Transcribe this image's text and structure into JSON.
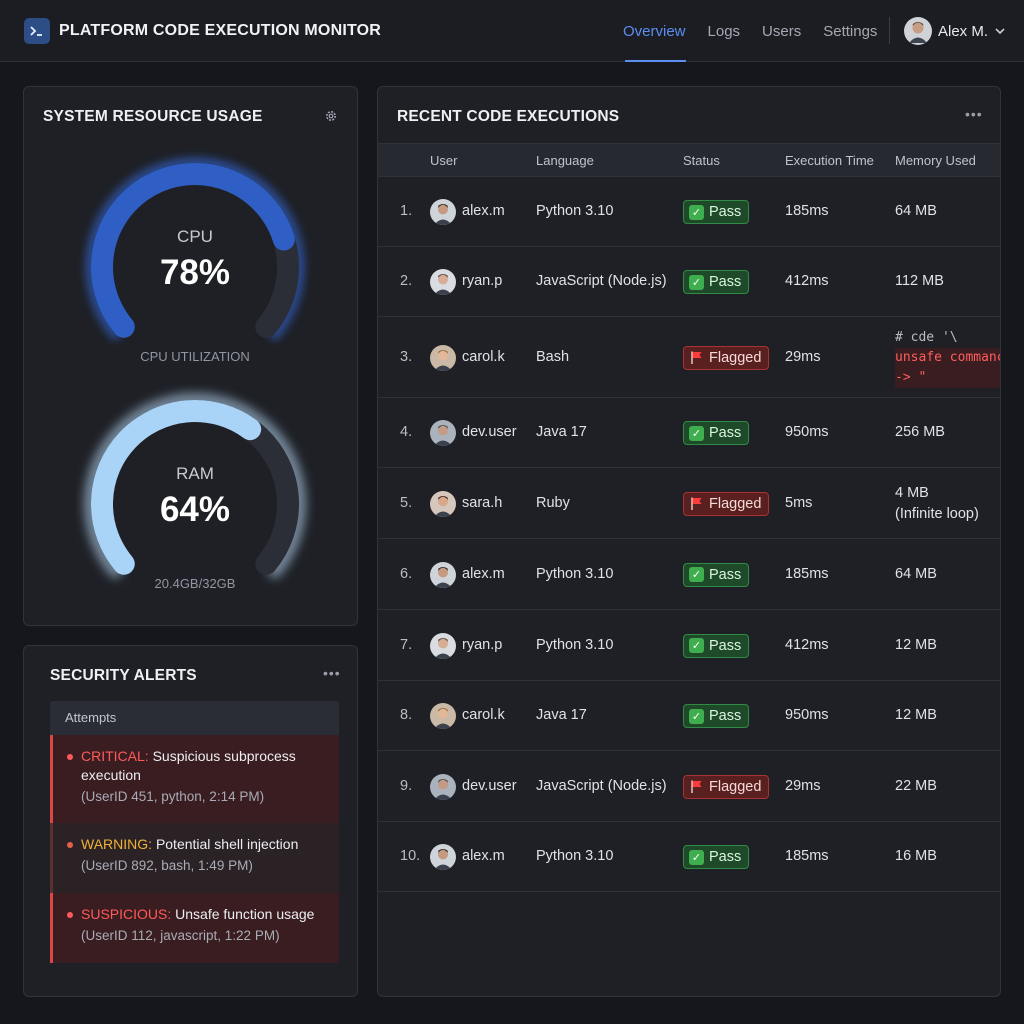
{
  "header": {
    "title": "PLATFORM CODE EXECUTION MONITOR",
    "nav": [
      {
        "label": "Overview",
        "active": true
      },
      {
        "label": "Logs",
        "active": false
      },
      {
        "label": "Users",
        "active": false
      },
      {
        "label": "Settings",
        "active": false
      }
    ],
    "user": {
      "name": "Alex M."
    }
  },
  "resources": {
    "title": "SYSTEM RESOURCE USAGE",
    "cpu": {
      "label": "CPU",
      "value": "78%",
      "percent": 78,
      "caption": "CPU UTILIZATION",
      "color": "#2f5ec4"
    },
    "ram": {
      "label": "RAM",
      "value": "64%",
      "percent": 64,
      "caption": "20.4GB/32GB",
      "color": "#a9d3f7"
    }
  },
  "alerts": {
    "title": "SECURITY ALERTS",
    "header": "Attempts",
    "items": [
      {
        "severity": "CRITICAL:",
        "message": "Suspicious subprocess execution",
        "detail": "(UserID 451, python, 2:14 PM)",
        "sev_color": "#ff5a5a"
      },
      {
        "severity": "WARNING:",
        "message": "Potential shell injection",
        "detail": "(UserID 892, bash, 1:49 PM)",
        "sev_color": "#f0b13a"
      },
      {
        "severity": "SUSPICIOUS:",
        "message": "Unsafe function usage",
        "detail": "(UserID 112, javascript, 1:22 PM)",
        "sev_color": "#ff5a5a"
      }
    ]
  },
  "executions": {
    "title": "RECENT CODE EXECUTIONS",
    "columns": {
      "user": "User",
      "language": "Language",
      "status": "Status",
      "time": "Execution Time",
      "memory": "Memory Used"
    },
    "rows": [
      {
        "num": "1.",
        "user": "alex.m",
        "language": "Python 3.10",
        "status": "Pass",
        "time": "185ms",
        "memory": "64 MB"
      },
      {
        "num": "2.",
        "user": "ryan.p",
        "language": "JavaScript (Node.js)",
        "status": "Pass",
        "time": "412ms",
        "memory": "112 MB"
      },
      {
        "num": "3.",
        "user": "carol.k",
        "language": "Bash",
        "status": "Flagged",
        "time": "29ms",
        "memory_code": [
          "# cde '\\",
          "unsafe commanc",
          "-> \""
        ]
      },
      {
        "num": "4.",
        "user": "dev.user",
        "language": "Java 17",
        "status": "Pass",
        "time": "950ms",
        "memory": "256 MB"
      },
      {
        "num": "5.",
        "user": "sara.h",
        "language": "Ruby",
        "status": "Flagged",
        "time": "5ms",
        "memory": "4 MB",
        "memory_note": "(Infinite loop)"
      },
      {
        "num": "6.",
        "user": "alex.m",
        "language": "Python 3.10",
        "status": "Pass",
        "time": "185ms",
        "memory": "64 MB"
      },
      {
        "num": "7.",
        "user": "ryan.p",
        "language": "Python 3.10",
        "status": "Pass",
        "time": "412ms",
        "memory": "12 MB"
      },
      {
        "num": "8.",
        "user": "carol.k",
        "language": "Java 17",
        "status": "Pass",
        "time": "950ms",
        "memory": "12 MB"
      },
      {
        "num": "9.",
        "user": "dev.user",
        "language": "JavaScript (Node.js)",
        "status": "Flagged",
        "time": "29ms",
        "memory": "22 MB"
      },
      {
        "num": "10.",
        "user": "alex.m",
        "language": "Python 3.10",
        "status": "Pass",
        "time": "185ms",
        "memory": "16 MB"
      }
    ]
  },
  "icons": {
    "logo": "terminal-icon",
    "settings": "gear-icon",
    "more": "more-dots-icon",
    "user_dropdown": "chevron-down-icon",
    "pass": "check-icon",
    "flagged": "flag-icon"
  }
}
